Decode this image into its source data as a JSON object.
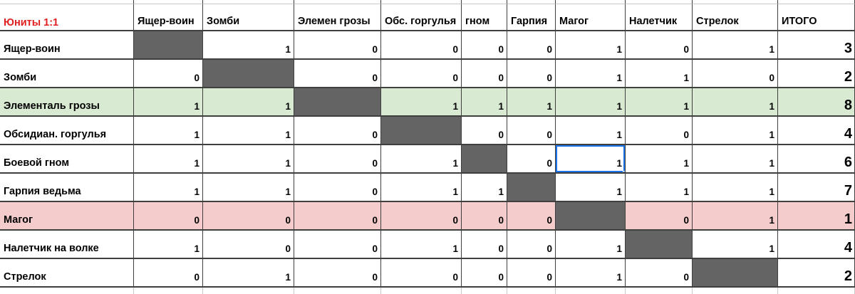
{
  "title": "Юниты 1:1",
  "columns": [
    "Ящер-воин",
    "Зомби",
    "Элемен грозы",
    "Обс. горгулья",
    "гном",
    "Гарпия",
    "Магог",
    "Налетчик",
    "Стрелок",
    "ИТОГО"
  ],
  "rows": [
    {
      "label": "Ящер-воин",
      "values": [
        null,
        1,
        0,
        0,
        0,
        0,
        1,
        0,
        1
      ],
      "total": 3,
      "highlight": ""
    },
    {
      "label": "Зомби",
      "values": [
        0,
        null,
        0,
        0,
        0,
        0,
        1,
        1,
        0
      ],
      "total": 2,
      "highlight": ""
    },
    {
      "label": "Элементаль грозы",
      "values": [
        1,
        1,
        null,
        1,
        1,
        1,
        1,
        1,
        1
      ],
      "total": 8,
      "highlight": "green"
    },
    {
      "label": "Обсидиан. горгулья",
      "values": [
        1,
        1,
        0,
        null,
        0,
        0,
        1,
        0,
        1
      ],
      "total": 4,
      "highlight": ""
    },
    {
      "label": "Боевой гном",
      "values": [
        1,
        1,
        0,
        1,
        null,
        0,
        1,
        1,
        1
      ],
      "total": 6,
      "highlight": ""
    },
    {
      "label": "Гарпия ведьма",
      "values": [
        1,
        1,
        0,
        1,
        1,
        null,
        1,
        1,
        1
      ],
      "total": 7,
      "highlight": ""
    },
    {
      "label": "Магог",
      "values": [
        0,
        0,
        0,
        0,
        0,
        0,
        null,
        0,
        1
      ],
      "total": 1,
      "highlight": "red"
    },
    {
      "label": "Налетчик на волке",
      "values": [
        1,
        0,
        0,
        1,
        0,
        0,
        1,
        null,
        1
      ],
      "total": 4,
      "highlight": ""
    },
    {
      "label": "Стрелок",
      "values": [
        0,
        1,
        0,
        0,
        0,
        0,
        1,
        0,
        null
      ],
      "total": 2,
      "highlight": ""
    }
  ],
  "selection": {
    "row_label": "Боевой гном",
    "col_label": "Магог",
    "row_index": 4,
    "col_index": 6,
    "value": 1
  },
  "colors": {
    "title_red": "#e01f1f",
    "diagonal_gray": "#646464",
    "green_row": "#d9ead3",
    "red_row": "#f4cccc",
    "grid_line": "#3f3f3f",
    "light_grid_line": "#c9c9c9",
    "selection_blue": "#1a73e8"
  }
}
